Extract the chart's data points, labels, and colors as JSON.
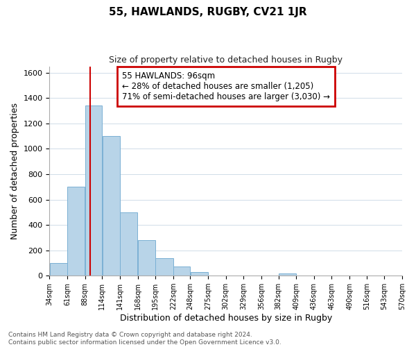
{
  "title": "55, HAWLANDS, RUGBY, CV21 1JR",
  "subtitle": "Size of property relative to detached houses in Rugby",
  "xlabel": "Distribution of detached houses by size in Rugby",
  "ylabel": "Number of detached properties",
  "footer_line1": "Contains HM Land Registry data © Crown copyright and database right 2024.",
  "footer_line2": "Contains public sector information licensed under the Open Government Licence v3.0.",
  "annotation_title": "55 HAWLANDS: 96sqm",
  "annotation_line1": "← 28% of detached houses are smaller (1,205)",
  "annotation_line2": "71% of semi-detached houses are larger (3,030) →",
  "property_line_x": 96,
  "bar_edges": [
    34,
    61,
    88,
    114,
    141,
    168,
    195,
    222,
    248,
    275,
    302,
    329,
    356,
    382,
    409,
    436,
    463,
    490,
    516,
    543,
    570
  ],
  "bar_heights": [
    100,
    700,
    1340,
    1100,
    500,
    280,
    140,
    75,
    30,
    0,
    0,
    0,
    0,
    15,
    0,
    0,
    0,
    0,
    0,
    0
  ],
  "bar_color": "#b8d4e8",
  "bar_edgecolor": "#7ab0d4",
  "property_line_color": "#cc0000",
  "ylim": [
    0,
    1650
  ],
  "yticks": [
    0,
    200,
    400,
    600,
    800,
    1000,
    1200,
    1400,
    1600
  ],
  "background_color": "#ffffff",
  "grid_color": "#d0dce8",
  "title_fontsize": 11,
  "subtitle_fontsize": 9,
  "xlabel_fontsize": 9,
  "ylabel_fontsize": 9,
  "tick_fontsize": 8,
  "xtick_fontsize": 7,
  "footer_fontsize": 6.5
}
